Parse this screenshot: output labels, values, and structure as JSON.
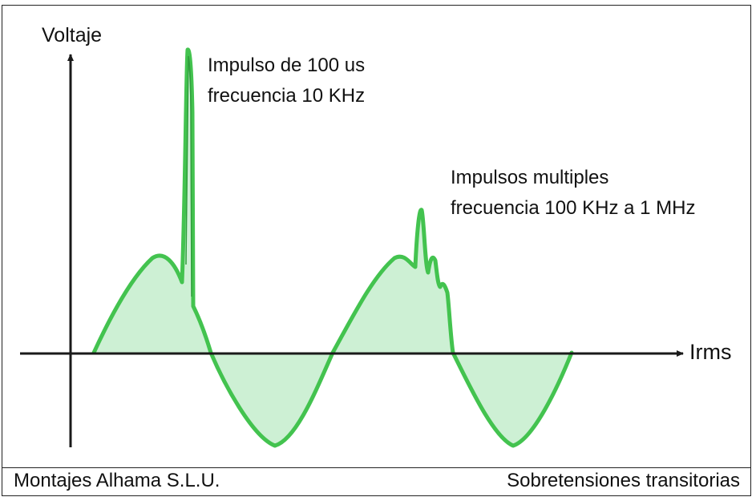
{
  "diagram": {
    "y_axis_label": "Voltaje",
    "x_axis_label": "Irms",
    "annotation_single": {
      "line1": "Impulso de 100 us",
      "line2": "frecuencia 10 KHz"
    },
    "annotation_multiple": {
      "line1": "Impulsos multiples",
      "line2": "frecuencia 100 KHz a 1 MHz"
    },
    "colors": {
      "wave_stroke": "#43c34f",
      "wave_fill": "#cdf0d4",
      "axis": "#1a1a1a"
    }
  },
  "footer": {
    "left": "Montajes Alhama S.L.U.",
    "right": "Sobretensiones transitorias"
  }
}
